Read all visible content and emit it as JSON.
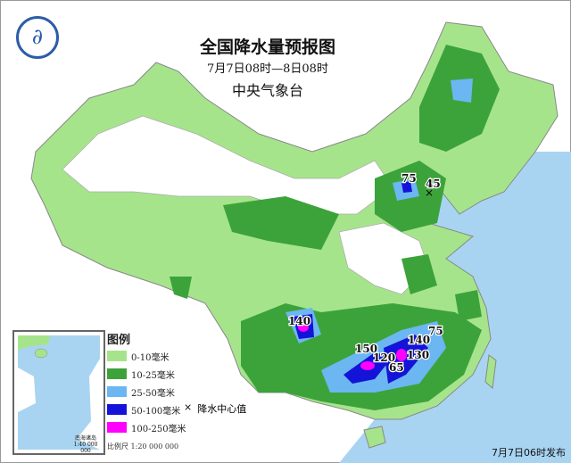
{
  "map": {
    "title": "全国降水量预报图",
    "period": "7月7日08时—8日08时",
    "agency": "中央气象台",
    "issued": "7月7日06时发布",
    "scale": "比例尺   1:20 000 000",
    "inset": {
      "label": "南海诸岛",
      "scale": "1:40 000 000"
    },
    "legend": {
      "title": "图例",
      "items": [
        {
          "label": "0-10毫米",
          "color": "#a6e48c"
        },
        {
          "label": "10-25毫米",
          "color": "#3ca33a"
        },
        {
          "label": "25-50毫米",
          "color": "#6cb6f2"
        },
        {
          "label": "50-100毫米",
          "color": "#1414d8"
        },
        {
          "label": "100-250毫米",
          "color": "#ff00ff"
        }
      ],
      "center_marker": {
        "symbol": "×",
        "label": "降水中心值"
      }
    },
    "center_values": [
      "140",
      "150",
      "120",
      "65",
      "140",
      "130",
      "75",
      "75",
      "45"
    ],
    "colors": {
      "sea": "#a8d4f2",
      "land_outside": "#ffffff",
      "border": "#888888"
    }
  }
}
